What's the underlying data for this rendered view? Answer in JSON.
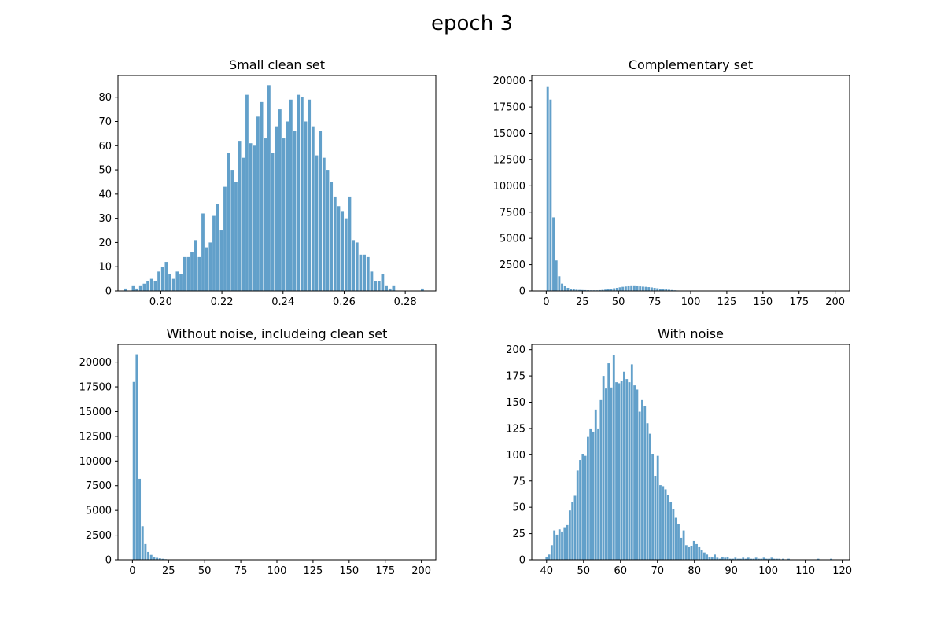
{
  "figure": {
    "title": "epoch 3",
    "bar_color": "#1f77b4",
    "bar_alpha": 0.7
  },
  "chart_data": [
    {
      "type": "bar",
      "title": "Small clean set",
      "xlabel": "",
      "ylabel": "",
      "xlim": [
        0.186,
        0.29
      ],
      "ylim": [
        0,
        89
      ],
      "bin_width": 0.000975,
      "xticks": [
        0.2,
        0.22,
        0.24,
        0.26,
        0.28
      ],
      "xtick_labels": [
        "0.20",
        "0.22",
        "0.24",
        "0.26",
        "0.28"
      ],
      "yticks": [
        0,
        10,
        20,
        30,
        40,
        50,
        60,
        70,
        80
      ],
      "ytick_labels": [
        "0",
        "10",
        "20",
        "30",
        "40",
        "50",
        "60",
        "70",
        "80"
      ],
      "x": [
        0.1885,
        0.191,
        0.1922,
        0.1934,
        0.1946,
        0.1958,
        0.197,
        0.1982,
        0.1994,
        0.2006,
        0.2018,
        0.203,
        0.2042,
        0.2054,
        0.2066,
        0.2078,
        0.209,
        0.2102,
        0.2114,
        0.2126,
        0.2138,
        0.215,
        0.2162,
        0.2174,
        0.2186,
        0.2198,
        0.221,
        0.2222,
        0.2234,
        0.2246,
        0.2258,
        0.227,
        0.2282,
        0.2294,
        0.2306,
        0.2318,
        0.233,
        0.2342,
        0.2354,
        0.2366,
        0.2378,
        0.239,
        0.2402,
        0.2414,
        0.2426,
        0.2438,
        0.245,
        0.2462,
        0.2474,
        0.2486,
        0.2498,
        0.251,
        0.2522,
        0.2534,
        0.2546,
        0.2558,
        0.257,
        0.2582,
        0.2594,
        0.2606,
        0.2618,
        0.263,
        0.2642,
        0.2654,
        0.2666,
        0.2678,
        0.269,
        0.2702,
        0.2714,
        0.2726,
        0.2738,
        0.275,
        0.2762,
        0.2856
      ],
      "values": [
        1,
        2,
        1,
        2,
        3,
        4,
        5,
        4,
        8,
        10,
        12,
        7,
        5,
        8,
        7,
        14,
        14,
        16,
        21,
        14,
        32,
        18,
        20,
        31,
        36,
        25,
        43,
        57,
        50,
        45,
        62,
        55,
        81,
        61,
        60,
        72,
        78,
        63,
        85,
        57,
        68,
        75,
        63,
        70,
        79,
        66,
        81,
        80,
        70,
        79,
        68,
        56,
        66,
        55,
        50,
        45,
        39,
        35,
        33,
        30,
        39,
        21,
        20,
        15,
        15,
        14,
        8,
        4,
        4,
        7,
        2,
        1,
        2,
        1
      ]
    },
    {
      "type": "bar",
      "title": "Complementary set",
      "xlabel": "",
      "ylabel": "",
      "xlim": [
        -10,
        210
      ],
      "ylim": [
        0,
        20500
      ],
      "bin_width": 1.6,
      "xticks": [
        0,
        25,
        50,
        75,
        100,
        125,
        150,
        175,
        200
      ],
      "xtick_labels": [
        "0",
        "25",
        "50",
        "75",
        "100",
        "125",
        "150",
        "175",
        "200"
      ],
      "yticks": [
        0,
        2500,
        5000,
        7500,
        10000,
        12500,
        15000,
        17500,
        20000
      ],
      "ytick_labels": [
        "0",
        "2500",
        "5000",
        "7500",
        "10000",
        "12500",
        "15000",
        "17500",
        "20000"
      ],
      "x": [
        1,
        3,
        5,
        7,
        9,
        11,
        13,
        15,
        17,
        19,
        21,
        23,
        25,
        27,
        29,
        31,
        33,
        35,
        37,
        39,
        41,
        43,
        45,
        47,
        49,
        51,
        53,
        55,
        57,
        59,
        61,
        63,
        65,
        67,
        69,
        71,
        73,
        75,
        77,
        79,
        81,
        83,
        85,
        87,
        89,
        91,
        93,
        95,
        97,
        99
      ],
      "values": [
        19400,
        18200,
        7000,
        2900,
        1400,
        700,
        450,
        300,
        200,
        150,
        120,
        100,
        90,
        80,
        70,
        60,
        60,
        60,
        80,
        100,
        130,
        160,
        200,
        260,
        300,
        350,
        400,
        430,
        450,
        460,
        460,
        450,
        440,
        420,
        400,
        370,
        340,
        300,
        260,
        220,
        180,
        150,
        120,
        90,
        60,
        40,
        30,
        20,
        10,
        5
      ]
    },
    {
      "type": "bar",
      "title": "Without noise, includeing clean set",
      "xlabel": "",
      "ylabel": "",
      "xlim": [
        -10,
        210
      ],
      "ylim": [
        0,
        21800
      ],
      "bin_width": 1.6,
      "xticks": [
        0,
        25,
        50,
        75,
        100,
        125,
        150,
        175,
        200
      ],
      "xtick_labels": [
        "0",
        "25",
        "50",
        "75",
        "100",
        "125",
        "150",
        "175",
        "200"
      ],
      "yticks": [
        0,
        2500,
        5000,
        7500,
        10000,
        12500,
        15000,
        17500,
        20000
      ],
      "ytick_labels": [
        "0",
        "2500",
        "5000",
        "7500",
        "10000",
        "12500",
        "15000",
        "17500",
        "20000"
      ],
      "x": [
        1,
        3,
        5,
        7,
        9,
        11,
        13,
        15,
        17,
        19,
        21,
        23,
        25
      ],
      "values": [
        18000,
        20800,
        8200,
        3400,
        1600,
        800,
        500,
        300,
        200,
        150,
        100,
        60,
        40
      ]
    },
    {
      "type": "bar",
      "title": "With noise",
      "xlabel": "",
      "ylabel": "",
      "xlim": [
        36,
        122
      ],
      "ylim": [
        0,
        205
      ],
      "bin_width": 0.6,
      "xticks": [
        40,
        50,
        60,
        70,
        80,
        90,
        100,
        110,
        120
      ],
      "xtick_labels": [
        "40",
        "50",
        "60",
        "70",
        "80",
        "90",
        "100",
        "110",
        "120"
      ],
      "yticks": [
        0,
        25,
        50,
        75,
        100,
        125,
        150,
        175,
        200
      ],
      "ytick_labels": [
        "0",
        "25",
        "50",
        "75",
        "100",
        "125",
        "150",
        "175",
        "200"
      ],
      "x": [
        40.0,
        40.7,
        41.4,
        42.1,
        42.8,
        43.5,
        44.2,
        44.9,
        45.6,
        46.3,
        47.0,
        47.7,
        48.4,
        49.1,
        49.8,
        50.5,
        51.2,
        51.9,
        52.6,
        53.3,
        54.0,
        54.7,
        55.4,
        56.1,
        56.8,
        57.5,
        58.2,
        58.9,
        59.6,
        60.3,
        61.0,
        61.7,
        62.4,
        63.1,
        63.8,
        64.5,
        65.2,
        65.9,
        66.6,
        67.3,
        68.0,
        68.7,
        69.4,
        70.1,
        70.8,
        71.5,
        72.2,
        72.9,
        73.6,
        74.3,
        75.0,
        75.7,
        76.4,
        77.1,
        77.8,
        78.5,
        79.2,
        79.9,
        80.6,
        81.3,
        82.0,
        82.7,
        83.4,
        84.1,
        84.8,
        85.5,
        86.2,
        86.9,
        87.6,
        88.3,
        89.0,
        89.7,
        90.4,
        91.1,
        91.8,
        92.5,
        93.2,
        93.9,
        94.6,
        95.3,
        96.0,
        96.7,
        97.4,
        98.1,
        98.8,
        99.5,
        100.2,
        100.9,
        101.6,
        102.3,
        103.0,
        104.0,
        105.5,
        113.5,
        117.0
      ],
      "values": [
        3,
        5,
        14,
        28,
        24,
        29,
        27,
        31,
        33,
        47,
        55,
        61,
        85,
        95,
        101,
        99,
        117,
        125,
        122,
        143,
        125,
        152,
        175,
        163,
        187,
        164,
        195,
        169,
        168,
        170,
        179,
        172,
        169,
        186,
        166,
        162,
        141,
        152,
        146,
        130,
        120,
        101,
        80,
        99,
        71,
        70,
        67,
        62,
        55,
        48,
        40,
        34,
        21,
        28,
        14,
        12,
        13,
        18,
        15,
        12,
        9,
        7,
        5,
        3,
        3,
        5,
        2,
        1,
        3,
        2,
        3,
        1,
        1,
        2,
        1,
        1,
        2,
        1,
        2,
        1,
        1,
        2,
        1,
        1,
        2,
        1,
        1,
        2,
        1,
        1,
        1,
        1,
        1,
        1,
        1
      ]
    }
  ]
}
